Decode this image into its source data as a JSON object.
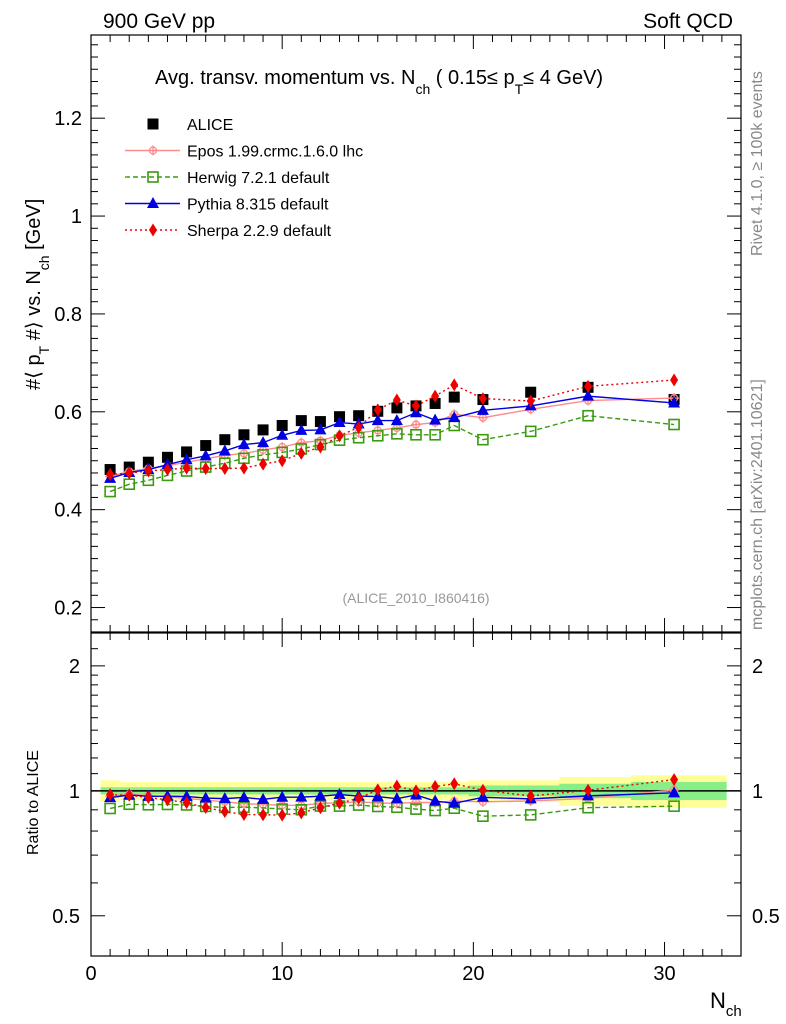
{
  "header": {
    "left": "900 GeV pp",
    "right": "Soft QCD"
  },
  "side_text": {
    "rivet": "Rivet 4.1.0, ≥ 100k events",
    "mcplots": "mcplots.cern.ch [arXiv:2401.10621]"
  },
  "chart_data": {
    "type": "scatter",
    "title": "Avg. transv. momentum vs. N_ch ( 0.15 ≤ p_T ≤ 4 GeV)",
    "watermark": "(ALICE_2010_I860416)",
    "xlabel": "N_ch",
    "ylabel_main": "#⟨ p_T #⟩ vs. N_ch [GeV]",
    "ylabel_ratio": "Ratio to ALICE",
    "xlim": [
      0,
      34
    ],
    "ylim_main": [
      0.15,
      1.37
    ],
    "ylim_ratio": [
      0.4,
      2.4
    ],
    "xticks": [
      0,
      10,
      20,
      30
    ],
    "yticks_main": [
      0.2,
      0.4,
      0.6,
      0.8,
      1,
      1.2
    ],
    "yticks_ratio": [
      0.5,
      1,
      2
    ],
    "legend": [
      "ALICE",
      "Epos 1.99.crmc.1.6.0 lhc",
      "Herwig 7.2.1 default",
      "Pythia 8.315 default",
      "Sherpa 2.2.9 default"
    ],
    "x": [
      1,
      2,
      3,
      4,
      5,
      6,
      7,
      8,
      9,
      10,
      11,
      12,
      13,
      14,
      15,
      16,
      17,
      18,
      19,
      20.5,
      23,
      26,
      30.5
    ],
    "series": [
      {
        "name": "ALICE",
        "color": "#000000",
        "marker": "square",
        "values": [
          0.482,
          0.487,
          0.497,
          0.507,
          0.518,
          0.531,
          0.543,
          0.553,
          0.563,
          0.572,
          0.582,
          0.58,
          0.59,
          0.592,
          0.601,
          0.608,
          0.612,
          0.617,
          0.63,
          0.625,
          0.64,
          0.65,
          0.625
        ]
      },
      {
        "name": "Epos 1.99.crmc.1.6.0 lhc",
        "color": "#ff8a8a",
        "marker": "cross",
        "values": [
          0.468,
          0.478,
          0.484,
          0.49,
          0.497,
          0.504,
          0.511,
          0.515,
          0.522,
          0.528,
          0.537,
          0.541,
          0.552,
          0.557,
          0.562,
          0.567,
          0.574,
          0.578,
          0.595,
          0.588,
          0.605,
          0.623,
          0.628
        ]
      },
      {
        "name": "Herwig 7.2.1 default",
        "color": "#3a9a10",
        "marker": "open-square",
        "values": [
          0.437,
          0.452,
          0.46,
          0.47,
          0.479,
          0.487,
          0.495,
          0.505,
          0.512,
          0.517,
          0.524,
          0.533,
          0.542,
          0.547,
          0.551,
          0.555,
          0.553,
          0.553,
          0.572,
          0.543,
          0.56,
          0.592,
          0.574
        ]
      },
      {
        "name": "Pythia 8.315 default",
        "color": "#0000e0",
        "marker": "triangle",
        "values": [
          0.464,
          0.476,
          0.482,
          0.492,
          0.502,
          0.51,
          0.52,
          0.533,
          0.537,
          0.552,
          0.562,
          0.563,
          0.578,
          0.575,
          0.582,
          0.582,
          0.598,
          0.583,
          0.588,
          0.603,
          0.612,
          0.632,
          0.618
        ]
      },
      {
        "name": "Sherpa 2.2.9 default",
        "color": "#ee0000",
        "marker": "diamond",
        "values": [
          0.472,
          0.475,
          0.479,
          0.482,
          0.485,
          0.484,
          0.484,
          0.485,
          0.493,
          0.5,
          0.515,
          0.528,
          0.551,
          0.568,
          0.604,
          0.624,
          0.612,
          0.632,
          0.655,
          0.627,
          0.622,
          0.652,
          0.665
        ]
      }
    ],
    "ratio_bands": {
      "yellow": [
        0.06,
        0.05,
        0.05,
        0.05,
        0.05,
        0.05,
        0.05,
        0.05,
        0.05,
        0.05,
        0.05,
        0.05,
        0.05,
        0.05,
        0.05,
        0.05,
        0.05,
        0.05,
        0.05,
        0.06,
        0.06,
        0.08,
        0.09
      ],
      "green": [
        0.02,
        0.02,
        0.02,
        0.02,
        0.02,
        0.02,
        0.02,
        0.02,
        0.02,
        0.02,
        0.02,
        0.02,
        0.02,
        0.02,
        0.02,
        0.02,
        0.02,
        0.02,
        0.02,
        0.03,
        0.03,
        0.04,
        0.05
      ]
    }
  }
}
